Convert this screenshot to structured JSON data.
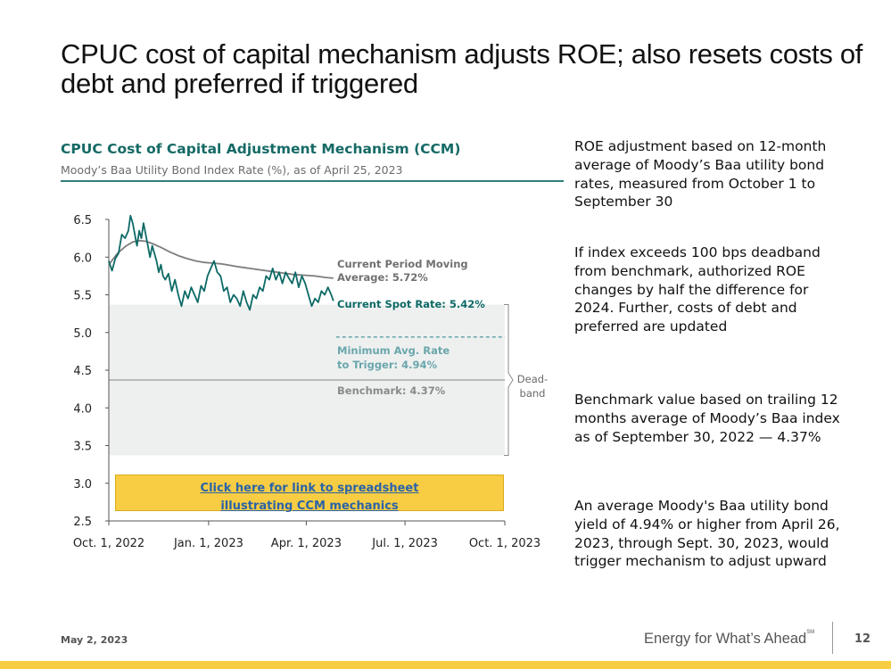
{
  "slide": {
    "title": "CPUC cost of capital mechanism adjusts ROE; also resets costs of debt and preferred if triggered",
    "footer_date": "May 2, 2023",
    "tagline": "Energy for What’s Ahead",
    "tagline_mark": "SM",
    "page_number": "12",
    "bar_color": "#f8cd43"
  },
  "bullets": [
    "ROE adjustment based on 12-month average of Moody’s Baa utility bond rates, measured from October 1 to September 30",
    "If index exceeds 100 bps deadband from benchmark, authorized ROE changes by half the difference for 2024. Further, costs of debt and preferred are updated",
    "Benchmark value based on trailing 12 months average of Moody’s Baa index as of September 30, 2022 — 4.37%",
    "An average Moody's Baa utility bond yield of 4.94% or higher from April 26, 2023, through Sept. 30, 2023, would trigger mechanism to adjust upward"
  ],
  "link": {
    "line1": "Click here for link to spreadsheet",
    "line2": "illustrating CCM mechanics"
  },
  "chart_data": {
    "type": "line",
    "title": "CPUC Cost of Capital Adjustment Mechanism (CCM)",
    "subtitle": "Moody’s Baa Utility Bond Index Rate (%), as of April 25, 2023",
    "xlabel": "",
    "ylabel": "",
    "xlim": [
      0,
      365
    ],
    "ylim": [
      2.5,
      6.5
    ],
    "yticks": [
      2.5,
      3.0,
      3.5,
      4.0,
      4.5,
      5.0,
      5.5,
      6.0,
      6.5
    ],
    "ytick_labels": [
      "2.5",
      "3.0",
      "3.5",
      "4.0",
      "4.5",
      "5.0",
      "5.5",
      "6.0",
      "6.5"
    ],
    "xticks": [
      0,
      92,
      182,
      273,
      365
    ],
    "xtick_labels": [
      "Oct. 1, 2022",
      "Jan. 1, 2023",
      "Apr. 1, 2023",
      "Jul. 1, 2023",
      "Oct. 1, 2023"
    ],
    "colors": {
      "spot": "#0d6a66",
      "moving": "#7d7d7d",
      "min_trigger": "#5f9ea3",
      "benchmark": "#9a9a9a",
      "deadband_fill": "#eef0f0",
      "axis": "#555555"
    },
    "series": [
      {
        "name": "Current Spot Rate",
        "x": [
          0,
          3,
          6,
          9,
          12,
          15,
          18,
          20,
          22,
          24,
          26,
          28,
          30,
          32,
          34,
          36,
          38,
          40,
          42,
          44,
          46,
          48,
          50,
          52,
          55,
          58,
          61,
          64,
          67,
          70,
          73,
          76,
          79,
          82,
          85,
          88,
          91,
          94,
          97,
          100,
          103,
          106,
          109,
          112,
          115,
          118,
          121,
          124,
          127,
          130,
          133,
          136,
          139,
          142,
          145,
          148,
          151,
          154,
          157,
          160,
          163,
          166,
          169,
          172,
          175,
          178,
          181,
          184,
          187,
          190,
          193,
          196,
          199,
          202,
          205,
          207
        ],
        "values": [
          5.95,
          5.82,
          5.98,
          6.05,
          6.3,
          6.25,
          6.35,
          6.55,
          6.45,
          6.3,
          6.15,
          6.35,
          6.25,
          6.45,
          6.3,
          6.15,
          6.0,
          6.15,
          6.05,
          5.95,
          5.8,
          5.9,
          5.75,
          5.7,
          5.78,
          5.55,
          5.7,
          5.5,
          5.35,
          5.55,
          5.45,
          5.6,
          5.5,
          5.4,
          5.62,
          5.55,
          5.75,
          5.85,
          5.95,
          5.8,
          5.75,
          5.55,
          5.6,
          5.4,
          5.5,
          5.45,
          5.35,
          5.55,
          5.4,
          5.3,
          5.5,
          5.45,
          5.6,
          5.55,
          5.75,
          5.7,
          5.85,
          5.7,
          5.8,
          5.65,
          5.8,
          5.72,
          5.65,
          5.8,
          5.6,
          5.75,
          5.65,
          5.5,
          5.35,
          5.45,
          5.4,
          5.55,
          5.5,
          5.6,
          5.5,
          5.42
        ]
      },
      {
        "name": "Current Period Moving Average",
        "x": [
          0,
          8,
          16,
          22,
          28,
          34,
          40,
          48,
          56,
          64,
          72,
          80,
          88,
          96,
          104,
          112,
          120,
          130,
          140,
          150,
          160,
          170,
          180,
          190,
          200,
          207
        ],
        "values": [
          5.9,
          6.05,
          6.15,
          6.2,
          6.22,
          6.21,
          6.18,
          6.13,
          6.07,
          6.02,
          5.98,
          5.95,
          5.93,
          5.92,
          5.91,
          5.89,
          5.87,
          5.85,
          5.83,
          5.81,
          5.79,
          5.77,
          5.76,
          5.75,
          5.73,
          5.72
        ]
      }
    ],
    "reference_lines": [
      {
        "name": "Minimum Avg. Rate to Trigger",
        "value": 4.94,
        "x_start": 207,
        "x_end": 365,
        "style": "dashed"
      },
      {
        "name": "Benchmark",
        "value": 4.37,
        "x_start": 0,
        "x_end": 365,
        "style": "solid"
      }
    ],
    "deadband": {
      "label": "Dead-band",
      "label_line1": "Dead-",
      "label_line2": "band",
      "low": 3.37,
      "high": 5.37
    },
    "annotations": {
      "moving_line1": "Current Period Moving",
      "moving_line2": "Average: 5.72%",
      "spot": "Current Spot Rate: 5.42%",
      "min_line1": "Minimum Avg. Rate",
      "min_line2": "to Trigger: 4.94%",
      "benchmark": "Benchmark: 4.37%"
    }
  }
}
